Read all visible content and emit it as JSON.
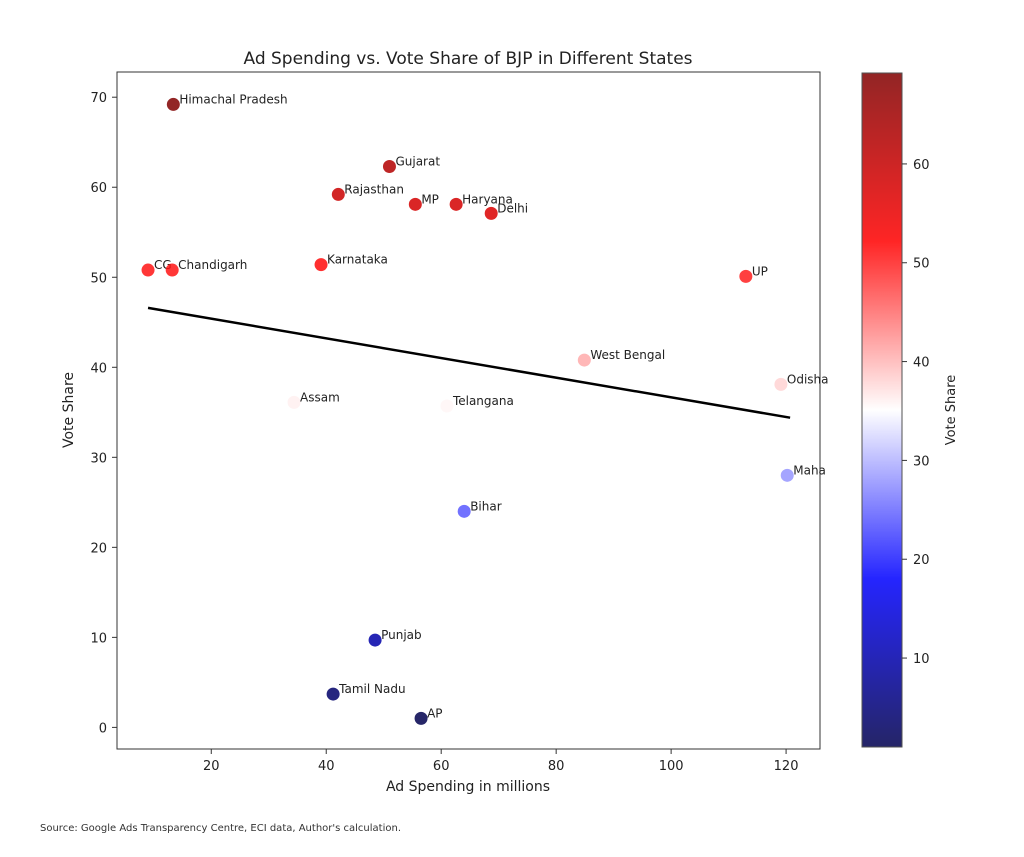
{
  "chart_data": {
    "type": "scatter",
    "title": "Ad Spending vs. Vote Share of BJP in Different States",
    "xlabel": "Ad Spending in millions",
    "ylabel": "Vote Share",
    "xlim": [
      3.6,
      125.9
    ],
    "ylim": [
      -2.4,
      72.8
    ],
    "xticks": [
      20,
      40,
      60,
      80,
      100,
      120
    ],
    "yticks": [
      0,
      10,
      20,
      30,
      40,
      50,
      60,
      70
    ],
    "grid": false,
    "points": [
      {
        "label": "Himachal Pradesh",
        "x": 13.4,
        "y": 69.2
      },
      {
        "label": "Gujarat",
        "x": 51.0,
        "y": 62.3
      },
      {
        "label": "Rajasthan",
        "x": 42.1,
        "y": 59.2
      },
      {
        "label": "MP",
        "x": 55.5,
        "y": 58.1
      },
      {
        "label": "Haryana",
        "x": 62.6,
        "y": 58.1
      },
      {
        "label": "Delhi",
        "x": 68.7,
        "y": 57.1
      },
      {
        "label": "Karnataka",
        "x": 39.1,
        "y": 51.4
      },
      {
        "label": "CG",
        "x": 9.0,
        "y": 50.8
      },
      {
        "label": "Chandigarh",
        "x": 13.2,
        "y": 50.8
      },
      {
        "label": "UP",
        "x": 113.0,
        "y": 50.1
      },
      {
        "label": "West Bengal",
        "x": 84.9,
        "y": 40.8
      },
      {
        "label": "Odisha",
        "x": 119.1,
        "y": 38.1
      },
      {
        "label": "Assam",
        "x": 34.4,
        "y": 36.1
      },
      {
        "label": "Telangana",
        "x": 61.0,
        "y": 35.7
      },
      {
        "label": "Maha",
        "x": 120.2,
        "y": 28.0
      },
      {
        "label": "Bihar",
        "x": 64.0,
        "y": 24.0
      },
      {
        "label": "Punjab",
        "x": 48.5,
        "y": 9.7
      },
      {
        "label": "Tamil Nadu",
        "x": 41.2,
        "y": 3.7
      },
      {
        "label": "AP",
        "x": 56.5,
        "y": 1.0
      }
    ],
    "trendline": {
      "x": [
        9.0,
        120.7
      ],
      "y": [
        46.6,
        34.4
      ],
      "color": "#000000"
    },
    "colorbar": {
      "label": "Vote Share",
      "colormap": "seismic",
      "range": [
        1.0,
        69.2
      ],
      "ticks": [
        10,
        20,
        30,
        40,
        50,
        60
      ]
    },
    "source": "Source: Google Ads Transparency Centre, ECI data, Author's calculation."
  }
}
